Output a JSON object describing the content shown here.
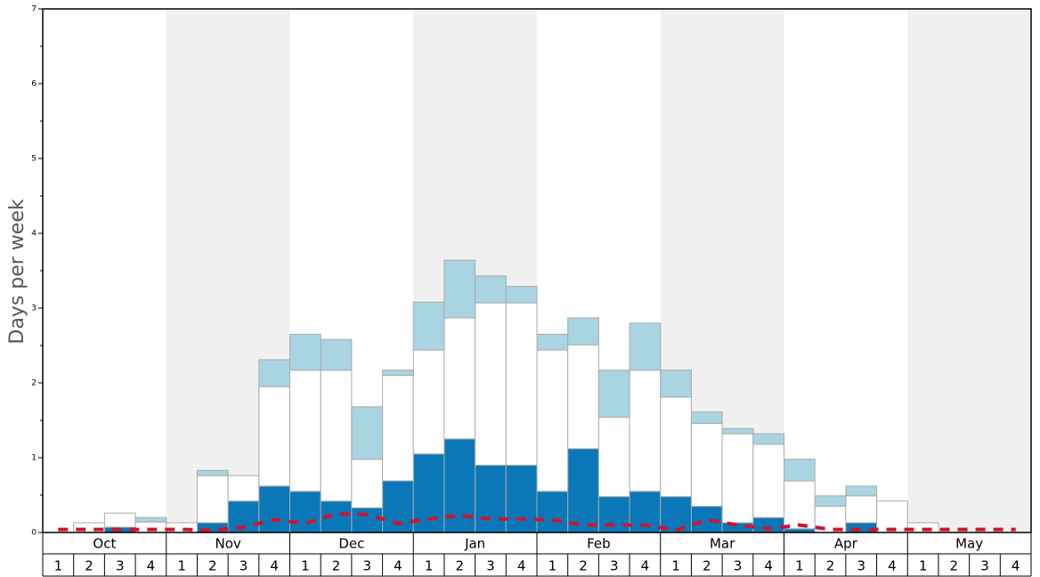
{
  "chart_data": {
    "type": "stacked_bar",
    "y_label": "Days per week",
    "months": [
      "Oct",
      "Nov",
      "Dec",
      "Jan",
      "Feb",
      "Mar",
      "Apr",
      "May"
    ],
    "categories": [
      "1",
      "2",
      "3",
      "4",
      "1",
      "2",
      "3",
      "4",
      "1",
      "2",
      "3",
      "4",
      "1",
      "2",
      "3",
      "4",
      "1",
      "2",
      "3",
      "4",
      "1",
      "2",
      "3",
      "4",
      "1",
      "2",
      "3",
      "4",
      "1",
      "2",
      "3",
      "4"
    ],
    "ylim": [
      0,
      7
    ],
    "yticks": [
      0,
      1,
      2,
      3,
      4,
      5,
      6,
      7
    ],
    "yticks_minor": [
      0.5,
      1.5,
      2.5,
      3.5,
      4.5,
      5.5,
      6.5
    ],
    "series": [
      {
        "color": "#0a78b8",
        "values": [
          0,
          0,
          0.07,
          0,
          0,
          0.13,
          0.42,
          0.62,
          0.55,
          0.42,
          0.33,
          0.69,
          1.05,
          1.25,
          0.9,
          0.9,
          0.55,
          1.12,
          0.48,
          0.55,
          0.48,
          0.35,
          0.13,
          0.2,
          0.05,
          0,
          0.13,
          0,
          0,
          0,
          0,
          0
        ]
      },
      {
        "color": "#ffffff",
        "values": [
          0,
          0.13,
          0.19,
          0.14,
          0.13,
          0.63,
          0.34,
          1.33,
          1.62,
          1.75,
          0.65,
          1.41,
          1.39,
          1.62,
          2.17,
          2.17,
          1.89,
          1.39,
          1.06,
          1.62,
          1.33,
          1.11,
          1.19,
          0.98,
          0.64,
          0.35,
          0.36,
          0.42,
          0.13,
          0,
          0,
          0
        ]
      },
      {
        "color": "#a9d4e2",
        "values": [
          0,
          0,
          0,
          0.06,
          0,
          0.07,
          0,
          0.36,
          0.48,
          0.41,
          0.7,
          0.07,
          0.64,
          0.77,
          0.36,
          0.22,
          0.21,
          0.36,
          0.63,
          0.63,
          0.36,
          0.15,
          0.07,
          0.14,
          0.29,
          0.14,
          0.13,
          0,
          0,
          0,
          0,
          0
        ]
      }
    ],
    "line": {
      "color": "#d0142c",
      "values": [
        0.04,
        0.04,
        0.04,
        0.04,
        0.04,
        0.03,
        0.07,
        0.17,
        0.12,
        0.25,
        0.24,
        0.12,
        0.18,
        0.23,
        0.18,
        0.18,
        0.17,
        0.1,
        0.1,
        0.1,
        0.03,
        0.17,
        0.1,
        0.05,
        0.1,
        0.04,
        0.04,
        0.04,
        0.04,
        0.04,
        0.04,
        0.04
      ]
    }
  }
}
